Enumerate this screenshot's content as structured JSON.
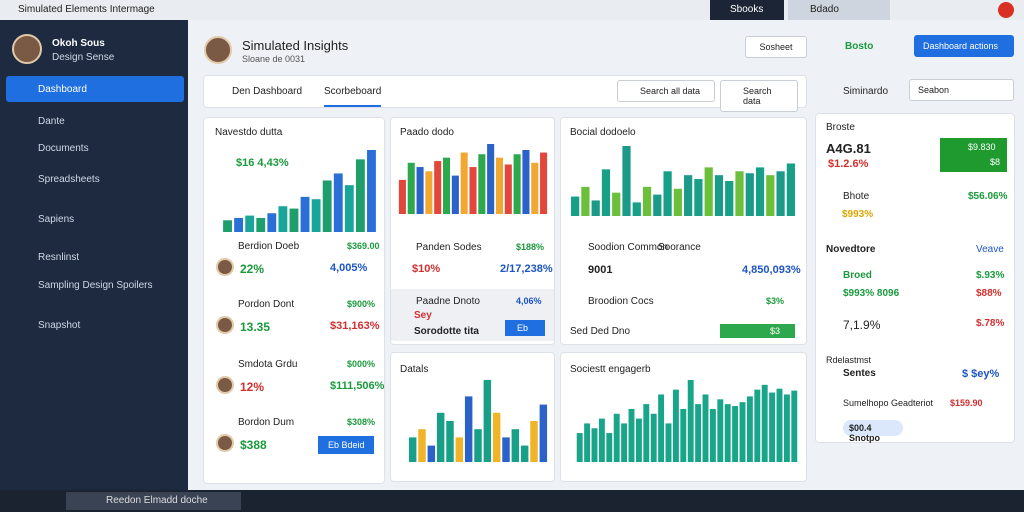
{
  "window": {
    "title": "Simulated Elements Intermage",
    "tabs": [
      "Sbooks",
      "Bdado"
    ]
  },
  "sidebar": {
    "user": {
      "name": "Okoh Sous",
      "role": "Design Sense"
    },
    "items": [
      "Dashboard",
      "Dante",
      "Documents",
      "Spreadsheets",
      "Sapiens",
      "Resnlinst",
      "Sampling Design Spoilers",
      "Snapshot"
    ]
  },
  "header": {
    "title": "Simulated Insights",
    "subtitle": "Sloane de 0031",
    "buttons": [
      "Sosheet",
      "Bosto",
      "Dashboard actions"
    ]
  },
  "tabs": [
    "Den Dashboard",
    "Scorbeboard"
  ],
  "search": [
    "Search all data",
    "Search data"
  ],
  "panel_search": [
    "Siminardo",
    "Seabon"
  ],
  "cards": [
    {
      "title": "Navestdo dutta",
      "stat": "$16 4,43%",
      "rows": [
        {
          "name": "Berdion Doeb",
          "value": "$369.00",
          "stat": "22%",
          "change": "4,005%"
        },
        {
          "name": "Pordon Dont",
          "value": "$900%",
          "stat": "13.35",
          "change": "$31,163%"
        },
        {
          "name": "Smdota Grdu",
          "value": "$000%",
          "stat": "12%",
          "change": "$111,506%"
        },
        {
          "name": "Bordon Dum",
          "value": "$308%",
          "stat": "$388",
          "button": "Eb Bdeid"
        }
      ]
    },
    {
      "title": "Paado dodo",
      "rows": [
        {
          "name": "Panden Sodes",
          "value": "$188%",
          "stat": "$10%",
          "change": "2/17,238%"
        },
        {
          "name": "Paadne Dnoto",
          "value": "4,06%",
          "stat": "Sey",
          "note": "Sorodotte tita",
          "button": "Eb"
        }
      ]
    },
    {
      "title": "Bocial dodoelo",
      "rows": [
        {
          "name": "Soodion Common",
          "value": "Soorance",
          "stat": "9001",
          "change": "4,850,093%"
        },
        {
          "name": "Broodion Cocs",
          "value": "$3%",
          "stat": "Sed Ded Dno",
          "button": "$3"
        }
      ]
    },
    {
      "title": "Datals"
    },
    {
      "title": "Sociestt engagerb"
    }
  ],
  "panel": {
    "title": "Broste",
    "amount": "A4G.81",
    "change": "$1.2.6%",
    "box": [
      "$9.830",
      "$8"
    ],
    "item": "Bhote",
    "item_value": "$56.06%",
    "item_stat": "$993%",
    "section": "Novedtore",
    "section_link": "Veave",
    "rows": [
      {
        "label": "Broed",
        "value": "$.93%"
      },
      {
        "label": "$993% 8096",
        "value": "$88%"
      },
      {
        "label": "7,1.9%",
        "value": "$.78%"
      }
    ],
    "footer_title": "Rdelastmst",
    "footer_label": "Sentes",
    "footer_value": "$ $ey%",
    "footer_row": "Sumelhopo Geadteriot",
    "footer_row_value": "$159.90",
    "pill": "$00.4 Snotpo"
  },
  "taskbar": {
    "search": "Reedon Elmadd doche"
  },
  "charts": [
    {
      "colors": [
        "#1e9e6a",
        "#2a6fd6",
        "#1aa59b"
      ],
      "values": [
        10,
        12,
        14,
        12,
        16,
        22,
        20,
        30,
        28,
        44,
        50,
        40,
        62,
        70
      ]
    },
    {
      "colors": [
        "#e2473b",
        "#2ea84d",
        "#2a62c9",
        "#f0a830"
      ],
      "values": [
        40,
        60,
        55,
        50,
        62,
        66,
        45,
        72,
        55,
        70,
        82,
        66,
        58,
        70,
        75,
        60,
        72
      ]
    },
    {
      "colors": [
        "#17a087",
        "#6cbf3a",
        "#1b9a8a"
      ],
      "values": [
        20,
        30,
        16,
        48,
        24,
        72,
        14,
        30,
        22,
        46,
        28,
        42,
        38,
        50,
        42,
        36,
        46,
        44,
        50,
        42,
        46,
        54
      ]
    },
    {
      "colors": [
        "#17a087",
        "#f0b429",
        "#2a62c9",
        "#17a087"
      ],
      "values": [
        30,
        40,
        20,
        60,
        50,
        30,
        80,
        40,
        100,
        60,
        30,
        40,
        20,
        50,
        70
      ]
    },
    {
      "colors": [
        "#18a58a"
      ],
      "values": [
        30,
        40,
        35,
        45,
        30,
        50,
        40,
        55,
        45,
        60,
        50,
        70,
        40,
        75,
        55,
        85,
        60,
        70,
        55,
        65,
        60,
        58,
        62,
        68,
        75,
        80,
        72,
        76,
        70,
        74
      ]
    }
  ]
}
